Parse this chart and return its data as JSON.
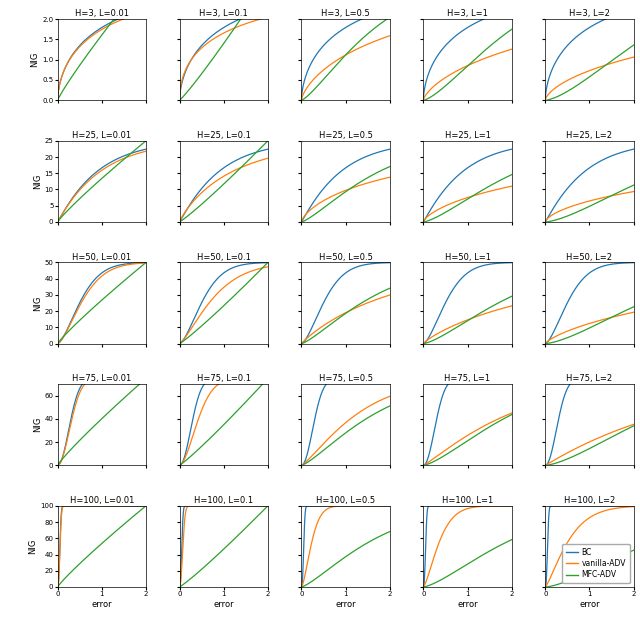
{
  "H_values": [
    3,
    25,
    50,
    75,
    100
  ],
  "L_values": [
    0.01,
    0.1,
    0.5,
    1,
    2
  ],
  "colors": {
    "BC": "#1f77b4",
    "vanilla-ADV": "#ff7f0e",
    "MFC-ADV": "#2ca02c"
  },
  "xlabel": "error",
  "ylabel": "NIG",
  "legend_labels": [
    "BC",
    "vanilla-ADV",
    "MFC-ADV"
  ],
  "y_maxes": {
    "3": 2.0,
    "25": 25.0,
    "50": 50.0,
    "75": 70.0,
    "100": 100.0
  },
  "y_ticks": {
    "3": [
      0,
      0.5,
      1.0,
      1.5,
      2.0
    ],
    "25": [
      0,
      5,
      10,
      15,
      20,
      25
    ],
    "50": [
      0,
      10,
      20,
      30,
      40,
      50
    ],
    "75": [
      0,
      20,
      40,
      60
    ],
    "100": [
      0,
      20,
      40,
      60,
      80,
      100
    ]
  }
}
